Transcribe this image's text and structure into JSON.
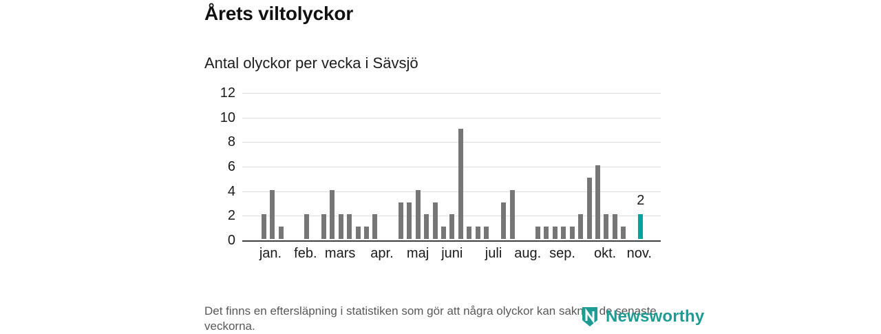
{
  "page": {
    "title": "Årets viltolyckor",
    "subtitle": "Antal olyckor per vecka i Sävsjö",
    "footnote": "Det finns en eftersläpning i statistiken som gör att några olyckor kan saknas de senaste veckorna.",
    "brand": {
      "name": "Newsworthy",
      "color": "#1d9c93"
    }
  },
  "chart_data": {
    "type": "bar",
    "title": "Antal olyckor per vecka i Sävsjö",
    "xlabel": "",
    "ylabel": "",
    "x_unit": "vecka (januari–november)",
    "values": [
      0,
      0,
      2,
      4,
      1,
      0,
      0,
      2,
      0,
      2,
      4,
      2,
      2,
      1,
      1,
      2,
      0,
      0,
      3,
      3,
      4,
      2,
      3,
      1,
      2,
      9,
      1,
      1,
      1,
      0,
      3,
      4,
      0,
      0,
      1,
      1,
      1,
      1,
      1,
      2,
      5,
      6,
      2,
      2,
      1,
      0,
      2
    ],
    "highlight_index": 46,
    "highlight_value_label": "2",
    "bar_color": "#767676",
    "highlight_color": "#00a49c",
    "ylim": [
      0,
      12
    ],
    "yticks": [
      0,
      2,
      4,
      6,
      8,
      10,
      12
    ],
    "grid": "horizontal",
    "legend": "none",
    "month_ticks": [
      {
        "label": "jan.",
        "pos": 0.07
      },
      {
        "label": "feb.",
        "pos": 0.157
      },
      {
        "label": "mars",
        "pos": 0.243
      },
      {
        "label": "apr.",
        "pos": 0.347
      },
      {
        "label": "maj",
        "pos": 0.436
      },
      {
        "label": "juni",
        "pos": 0.521
      },
      {
        "label": "juli",
        "pos": 0.624
      },
      {
        "label": "aug.",
        "pos": 0.709
      },
      {
        "label": "sep.",
        "pos": 0.795
      },
      {
        "label": "okt.",
        "pos": 0.901
      },
      {
        "label": "nov.",
        "pos": 0.986
      }
    ]
  }
}
